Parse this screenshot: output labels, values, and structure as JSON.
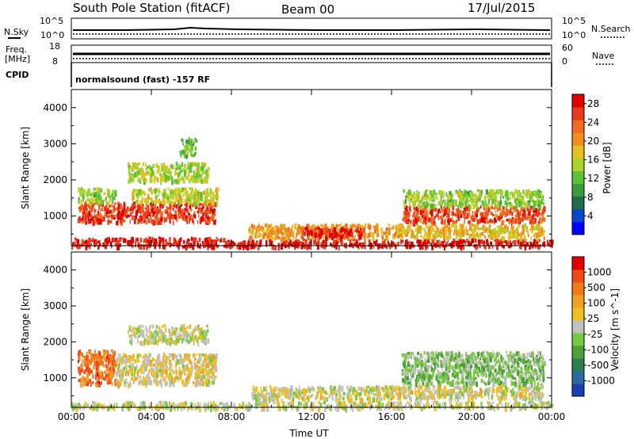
{
  "header": {
    "station": "South Pole Station (fitACF)",
    "beam": "Beam 00",
    "date": "17/Jul/2015"
  },
  "aux": {
    "nsky_label": "N.Sky",
    "nsearch_label": "N.Search",
    "noise_ticks": [
      "10^5",
      "10^0"
    ],
    "freq_label_1": "Freq.",
    "freq_label_2": "[MHz]",
    "freq_ticks": [
      "18",
      "8"
    ],
    "nave_label": "Nave",
    "nave_ticks": [
      "60",
      "0"
    ],
    "cpid_label": "CPID",
    "cpid_text": "normalsound (fast) -157 RF"
  },
  "chart_data": [
    {
      "type": "heatmap",
      "title": "",
      "ylabel": "Slant Range [km]",
      "xlabel": "",
      "ylim": [
        180,
        4500
      ],
      "xlim": [
        "00:00",
        "24:00"
      ],
      "y_ticks": [
        1000,
        2000,
        3000,
        4000
      ],
      "x_ticks": [
        "00:00",
        "04:00",
        "08:00",
        "12:00",
        "16:00",
        "20:00",
        "00:00"
      ],
      "colorbar": {
        "label": "Power [dB]",
        "ticks": [
          4,
          8,
          12,
          16,
          20,
          24,
          28
        ],
        "range": [
          0,
          30
        ],
        "colors": [
          "#0000ff",
          "#0d47c9",
          "#1f6b4a",
          "#3c9a3c",
          "#5ec234",
          "#a8d52a",
          "#e8c020",
          "#f09020",
          "#f06a20",
          "#e83a1c",
          "#e00000"
        ]
      },
      "patches": [
        {
          "t0": 0.0,
          "t1": 7.6,
          "r0": 180,
          "r1": 430,
          "value": 28,
          "desc": "near-range band"
        },
        {
          "t0": 7.6,
          "t1": 24.0,
          "r0": 180,
          "r1": 380,
          "value": 28,
          "desc": "near-range band"
        },
        {
          "t0": 0.3,
          "t1": 7.2,
          "r0": 850,
          "r1": 1400,
          "value": 26
        },
        {
          "t0": 0.3,
          "t1": 2.2,
          "r0": 1400,
          "r1": 1800,
          "value": 14
        },
        {
          "t0": 3.0,
          "t1": 7.3,
          "r0": 1400,
          "r1": 1800,
          "value": 16
        },
        {
          "t0": 2.8,
          "t1": 6.8,
          "r0": 2000,
          "r1": 2500,
          "value": 15
        },
        {
          "t0": 5.4,
          "t1": 6.2,
          "r0": 2700,
          "r1": 3200,
          "value": 12
        },
        {
          "t0": 8.8,
          "t1": 16.5,
          "r0": 420,
          "r1": 800,
          "value": 20
        },
        {
          "t0": 11.5,
          "t1": 14.6,
          "r0": 430,
          "r1": 700,
          "value": 27
        },
        {
          "t0": 16.5,
          "t1": 23.6,
          "r0": 850,
          "r1": 1300,
          "value": 25
        },
        {
          "t0": 16.5,
          "t1": 23.6,
          "r0": 1300,
          "r1": 1750,
          "value": 14
        },
        {
          "t0": 16.3,
          "t1": 23.6,
          "r0": 430,
          "r1": 800,
          "value": 18
        }
      ]
    },
    {
      "type": "heatmap",
      "title": "",
      "ylabel": "Slant Range [km]",
      "xlabel": "Time UT",
      "ylim": [
        180,
        4500
      ],
      "xlim": [
        "00:00",
        "24:00"
      ],
      "y_ticks": [
        1000,
        2000,
        3000,
        4000
      ],
      "x_ticks": [
        "00:00",
        "04:00",
        "08:00",
        "12:00",
        "16:00",
        "20:00",
        "00:00"
      ],
      "colorbar": {
        "label": "Velocity [m s^-1]",
        "ticks": [
          "1000",
          "500",
          "100",
          "25",
          "-25",
          "-100",
          "-500",
          "-1000"
        ],
        "range": [
          -1000,
          1000
        ],
        "colors": [
          "#1a3fb0",
          "#2a6aa0",
          "#2f7d4d",
          "#4fa03a",
          "#78c840",
          "#c0c0c0",
          "#f0c020",
          "#f0a020",
          "#f07a1c",
          "#ee4a18",
          "#e00000"
        ]
      },
      "patches": [
        {
          "t0": 0.0,
          "t1": 24.0,
          "r0": 180,
          "r1": 360,
          "value": 0,
          "desc": "ground scatter"
        },
        {
          "t0": 0.3,
          "t1": 2.2,
          "r0": 850,
          "r1": 1800,
          "value": 600
        },
        {
          "t0": 2.2,
          "t1": 7.2,
          "r0": 850,
          "r1": 1700,
          "value": 120
        },
        {
          "t0": 2.8,
          "t1": 6.8,
          "r0": 2000,
          "r1": 2500,
          "value": 0
        },
        {
          "t0": 9.0,
          "t1": 16.5,
          "r0": 420,
          "r1": 800,
          "value": 60
        },
        {
          "t0": 16.5,
          "t1": 23.6,
          "r0": 850,
          "r1": 1750,
          "value": -200
        },
        {
          "t0": 16.5,
          "t1": 23.6,
          "r0": 450,
          "r1": 800,
          "value": 80
        }
      ]
    }
  ]
}
